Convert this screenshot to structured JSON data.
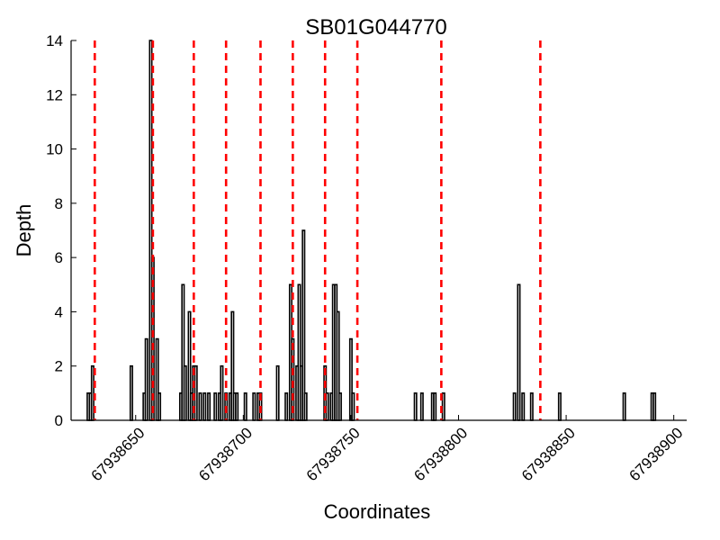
{
  "chart_data": {
    "type": "bar",
    "title": "SB01G044770",
    "xlabel": "Coordinates",
    "ylabel": "Depth",
    "xlim": [
      67938620,
      67938906
    ],
    "ylim": [
      0,
      14
    ],
    "grid": false,
    "x_ticks": [
      67938650,
      67938700,
      67938750,
      67938800,
      67938850,
      67938900
    ],
    "x_tick_labels": [
      "67938650",
      "67938700",
      "67938750",
      "67938800",
      "67938850",
      "67938900"
    ],
    "y_ticks": [
      0,
      2,
      4,
      6,
      8,
      10,
      12,
      14
    ],
    "y_tick_labels": [
      "0",
      "2",
      "4",
      "6",
      "8",
      "10",
      "12",
      "14"
    ],
    "bar_width": 1,
    "bar_fill": "#ffffff",
    "bar_edge": "#000000",
    "marker_color": "#ff0000",
    "bars": [
      {
        "x": 67938628,
        "y": 1
      },
      {
        "x": 67938629,
        "y": 1
      },
      {
        "x": 67938630,
        "y": 2
      },
      {
        "x": 67938648,
        "y": 2
      },
      {
        "x": 67938654,
        "y": 1
      },
      {
        "x": 67938655,
        "y": 3
      },
      {
        "x": 67938657,
        "y": 14
      },
      {
        "x": 67938658,
        "y": 6
      },
      {
        "x": 67938660,
        "y": 3
      },
      {
        "x": 67938661,
        "y": 1
      },
      {
        "x": 67938671,
        "y": 1
      },
      {
        "x": 67938672,
        "y": 5
      },
      {
        "x": 67938673,
        "y": 2
      },
      {
        "x": 67938675,
        "y": 4
      },
      {
        "x": 67938676,
        "y": 1
      },
      {
        "x": 67938677,
        "y": 2
      },
      {
        "x": 67938678,
        "y": 2
      },
      {
        "x": 67938680,
        "y": 1
      },
      {
        "x": 67938682,
        "y": 1
      },
      {
        "x": 67938684,
        "y": 1
      },
      {
        "x": 67938687,
        "y": 1
      },
      {
        "x": 67938689,
        "y": 1
      },
      {
        "x": 67938690,
        "y": 2
      },
      {
        "x": 67938692,
        "y": 1
      },
      {
        "x": 67938694,
        "y": 1
      },
      {
        "x": 67938695,
        "y": 4
      },
      {
        "x": 67938696,
        "y": 1
      },
      {
        "x": 67938697,
        "y": 1
      },
      {
        "x": 67938701,
        "y": 1
      },
      {
        "x": 67938705,
        "y": 1
      },
      {
        "x": 67938707,
        "y": 1
      },
      {
        "x": 67938708,
        "y": 1
      },
      {
        "x": 67938716,
        "y": 2
      },
      {
        "x": 67938720,
        "y": 1
      },
      {
        "x": 67938722,
        "y": 5
      },
      {
        "x": 67938723,
        "y": 3
      },
      {
        "x": 67938725,
        "y": 2
      },
      {
        "x": 67938726,
        "y": 5
      },
      {
        "x": 67938727,
        "y": 2
      },
      {
        "x": 67938728,
        "y": 7
      },
      {
        "x": 67938729,
        "y": 1
      },
      {
        "x": 67938738,
        "y": 2
      },
      {
        "x": 67938739,
        "y": 1
      },
      {
        "x": 67938741,
        "y": 1
      },
      {
        "x": 67938742,
        "y": 5
      },
      {
        "x": 67938743,
        "y": 5
      },
      {
        "x": 67938744,
        "y": 4
      },
      {
        "x": 67938745,
        "y": 1
      },
      {
        "x": 67938750,
        "y": 3
      },
      {
        "x": 67938751,
        "y": 1
      },
      {
        "x": 67938780,
        "y": 1
      },
      {
        "x": 67938783,
        "y": 1
      },
      {
        "x": 67938788,
        "y": 1
      },
      {
        "x": 67938789,
        "y": 1
      },
      {
        "x": 67938793,
        "y": 1
      },
      {
        "x": 67938826,
        "y": 1
      },
      {
        "x": 67938828,
        "y": 5
      },
      {
        "x": 67938830,
        "y": 1
      },
      {
        "x": 67938834,
        "y": 1
      },
      {
        "x": 67938847,
        "y": 1
      },
      {
        "x": 67938877,
        "y": 1
      },
      {
        "x": 67938890,
        "y": 1
      },
      {
        "x": 67938891,
        "y": 1
      }
    ],
    "markers": [
      67938631,
      67938658,
      67938677,
      67938692,
      67938708,
      67938723,
      67938738,
      67938753,
      67938792,
      67938838
    ]
  }
}
